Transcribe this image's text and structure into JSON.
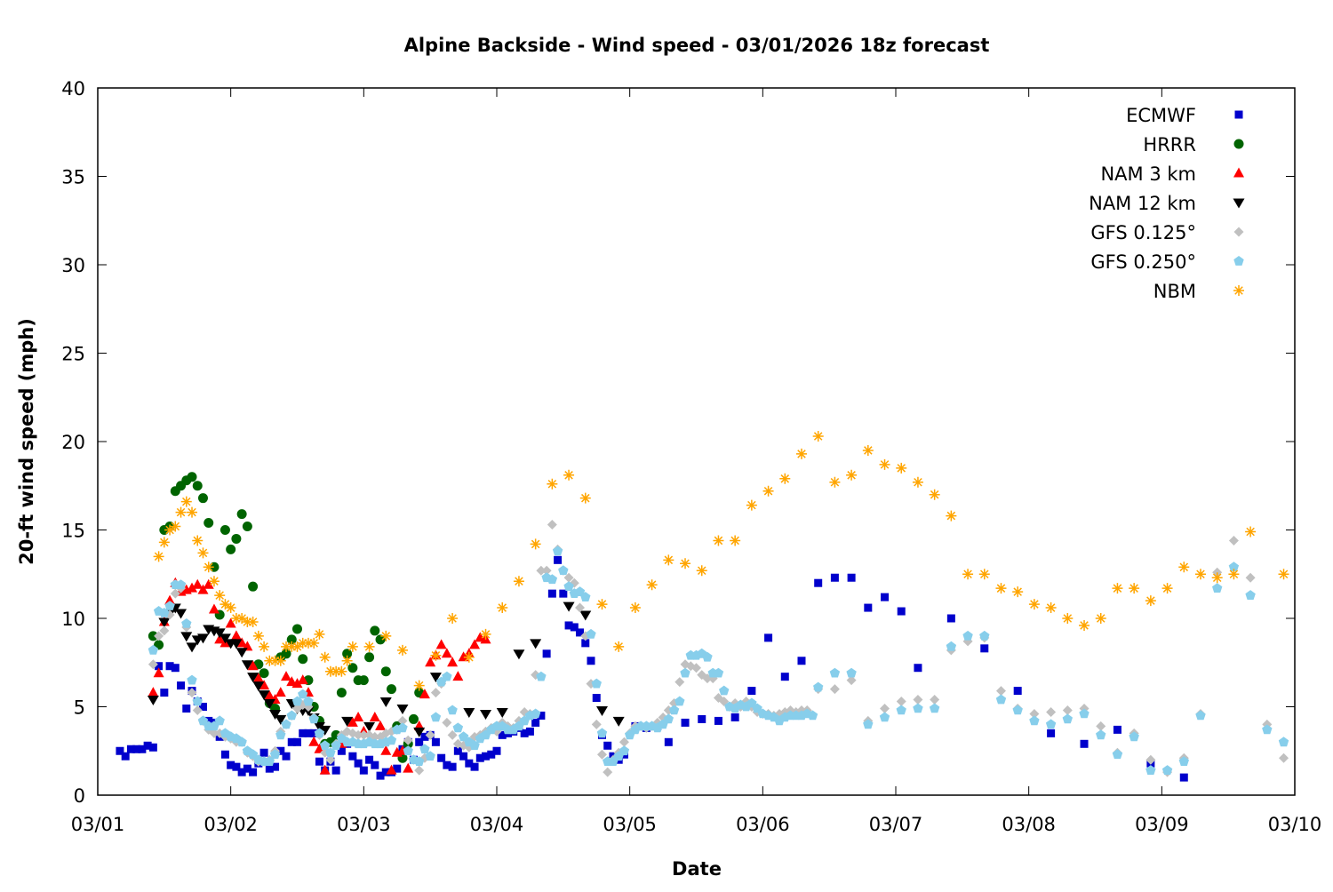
{
  "chart_data": {
    "type": "scatter",
    "title": "Alpine Backside - Wind speed - 03/01/2026 18z forecast",
    "xlabel": "Date",
    "ylabel": "20-ft wind speed (mph)",
    "x_units": "hours since 03/01 00z",
    "xlim": [
      0,
      216
    ],
    "ylim": [
      0,
      40
    ],
    "yticks": [
      0,
      5,
      10,
      15,
      20,
      25,
      30,
      35,
      40
    ],
    "yticklabels": [
      "0",
      "5",
      "10",
      "15",
      "20",
      "25",
      "30",
      "35",
      "40"
    ],
    "xticks": [
      0,
      24,
      48,
      72,
      96,
      120,
      144,
      168,
      192,
      216
    ],
    "xticklabels": [
      "03/01",
      "03/02",
      "03/03",
      "03/04",
      "03/05",
      "03/06",
      "03/07",
      "03/08",
      "03/09",
      "03/10"
    ],
    "legend_position": "top-right",
    "grid": false,
    "series": [
      {
        "name": "ECMWF",
        "marker": "square",
        "color": "#0000cc",
        "segments": [
          {
            "start": 4,
            "step": 1,
            "values": [
              2.5,
              2.2,
              2.6,
              2.6,
              2.6,
              2.8,
              2.7,
              7.3,
              5.8,
              7.3,
              7.2,
              6.2,
              4.9,
              5.9,
              5.3,
              5.0,
              4.2,
              4.1,
              3.3,
              2.3,
              1.7,
              1.6,
              1.3,
              1.5,
              1.3,
              1.8,
              2.4,
              1.5,
              1.6,
              2.5,
              2.2,
              3.0,
              3.0,
              3.5,
              3.5,
              3.5,
              1.9,
              1.4,
              1.9,
              1.4,
              2.5,
              2.9,
              2.2,
              1.8,
              1.4,
              2.0,
              1.7,
              1.1,
              1.3,
              1.3,
              1.5,
              2.6,
              3.0,
              2.0,
              3.0,
              3.3,
              3.4,
              3.0,
              2.1,
              1.7,
              1.6,
              2.5,
              2.2,
              1.8,
              1.6,
              2.1,
              2.2,
              2.3,
              2.5,
              3.4,
              3.5,
              3.6,
              3.8,
              3.5,
              3.6,
              4.1,
              4.5,
              8.0,
              11.4,
              13.3,
              11.4,
              9.6,
              9.5,
              9.2,
              8.6,
              7.6,
              5.5,
              3.4,
              2.8,
              2.2,
              2.0,
              2.3
            ]
          },
          {
            "start": 97,
            "step": 2,
            "values": [
              3.9,
              3.8,
              3.9,
              3.0
            ]
          },
          {
            "start": 106,
            "step": 3,
            "values": [
              4.1,
              4.3,
              4.2,
              4.4,
              5.9,
              8.9,
              6.7,
              7.6,
              12.0,
              12.3,
              12.3,
              10.6,
              11.2,
              10.4,
              7.2
            ]
          },
          {
            "start": 154,
            "step": 6,
            "values": [
              10.0,
              8.3,
              5.9,
              3.5,
              2.9,
              3.7,
              1.8,
              1.0
            ]
          }
        ]
      },
      {
        "name": "HRRR",
        "marker": "circle",
        "color": "#006400",
        "segments": [
          {
            "start": 10,
            "step": 1,
            "values": [
              9.0,
              8.5,
              15.0,
              15.2,
              17.2,
              17.5,
              17.8,
              18.0,
              17.5,
              16.8,
              15.4,
              12.9,
              10.2,
              15.0,
              13.9,
              14.5,
              15.9,
              15.2,
              11.8,
              7.4,
              6.9,
              5.2,
              4.9,
              7.8,
              8.0,
              8.8,
              9.4,
              7.7,
              6.5,
              5.0,
              4.2,
              2.9,
              3.0,
              3.4,
              5.8,
              8.0,
              7.2,
              6.5,
              6.5,
              7.8,
              9.3,
              8.8,
              7.0,
              6.0,
              3.9,
              2.1,
              2.9,
              4.3,
              5.8
            ]
          }
        ]
      },
      {
        "name": "NAM 3 km",
        "marker": "triangle-up",
        "color": "#ff0000",
        "points": [
          [
            10,
            5.8
          ],
          [
            11,
            6.9
          ],
          [
            12,
            9.8
          ],
          [
            13,
            11.0
          ],
          [
            14,
            12.0
          ],
          [
            15,
            11.5
          ],
          [
            16,
            11.6
          ],
          [
            17,
            11.7
          ],
          [
            18,
            11.9
          ],
          [
            19,
            11.6
          ],
          [
            20,
            11.9
          ],
          [
            21,
            10.5
          ],
          [
            22,
            8.8
          ],
          [
            23,
            8.6
          ],
          [
            24,
            9.7
          ],
          [
            25,
            9.0
          ],
          [
            26,
            8.6
          ],
          [
            27,
            8.4
          ],
          [
            28,
            7.3
          ],
          [
            29,
            6.6
          ],
          [
            30,
            6.2
          ],
          [
            31,
            5.6
          ],
          [
            32,
            5.4
          ],
          [
            33,
            5.8
          ],
          [
            34,
            6.7
          ],
          [
            35,
            6.4
          ],
          [
            36,
            6.3
          ],
          [
            37,
            6.5
          ],
          [
            38,
            5.8
          ],
          [
            39,
            3.0
          ],
          [
            40,
            2.6
          ],
          [
            41,
            1.4
          ],
          [
            44,
            2.9
          ],
          [
            46,
            4.1
          ],
          [
            47,
            4.4
          ],
          [
            48,
            3.6
          ],
          [
            50,
            4.4
          ],
          [
            51,
            3.9
          ],
          [
            52,
            2.5
          ],
          [
            53,
            1.4
          ],
          [
            54,
            2.4
          ],
          [
            55,
            2.5
          ],
          [
            56,
            1.5
          ],
          [
            58,
            3.9
          ],
          [
            59,
            5.7
          ],
          [
            60,
            7.5
          ],
          [
            61,
            7.9
          ],
          [
            62,
            8.5
          ],
          [
            63,
            8.0
          ],
          [
            64,
            7.5
          ],
          [
            65,
            6.7
          ],
          [
            66,
            7.8
          ],
          [
            67,
            8.0
          ],
          [
            68,
            8.5
          ],
          [
            69,
            8.9
          ],
          [
            70,
            8.8
          ]
        ]
      },
      {
        "name": "NAM 12 km",
        "marker": "triangle-down",
        "color": "#000000",
        "points": [
          [
            10,
            5.4
          ],
          [
            12,
            9.8
          ],
          [
            13,
            10.3
          ],
          [
            14,
            10.6
          ],
          [
            15,
            10.3
          ],
          [
            16,
            9.0
          ],
          [
            17,
            8.4
          ],
          [
            18,
            8.8
          ],
          [
            19,
            8.9
          ],
          [
            20,
            9.4
          ],
          [
            21,
            9.3
          ],
          [
            22,
            9.2
          ],
          [
            23,
            8.9
          ],
          [
            24,
            8.6
          ],
          [
            25,
            8.6
          ],
          [
            26,
            8.1
          ],
          [
            27,
            7.4
          ],
          [
            28,
            6.7
          ],
          [
            29,
            6.2
          ],
          [
            30,
            5.7
          ],
          [
            31,
            5.2
          ],
          [
            32,
            4.6
          ],
          [
            33,
            4.3
          ],
          [
            35,
            5.2
          ],
          [
            36,
            4.9
          ],
          [
            37,
            4.8
          ],
          [
            38,
            4.8
          ],
          [
            39,
            4.4
          ],
          [
            40,
            3.9
          ],
          [
            41,
            3.7
          ],
          [
            45,
            4.2
          ],
          [
            49,
            3.9
          ],
          [
            52,
            5.3
          ],
          [
            55,
            4.9
          ],
          [
            58,
            3.6
          ],
          [
            61,
            6.7
          ],
          [
            67,
            4.7
          ],
          [
            70,
            4.6
          ],
          [
            73,
            4.7
          ],
          [
            76,
            8.0
          ],
          [
            79,
            8.6
          ],
          [
            85,
            10.7
          ],
          [
            88,
            10.2
          ],
          [
            91,
            4.8
          ],
          [
            94,
            4.2
          ]
        ]
      },
      {
        "name": "GFS 0.125°",
        "marker": "diamond",
        "color": "#c0c0c0",
        "segments": [
          {
            "start": 10,
            "step": 1,
            "values": [
              7.4,
              9.0,
              9.3,
              10.2,
              11.4,
              11.7,
              9.5,
              5.8,
              4.8,
              4.2,
              3.7,
              3.5,
              3.5,
              3.3,
              3.2,
              3.0,
              3.0,
              2.4,
              2.2,
              1.9,
              1.9,
              2.0,
              2.5,
              3.6,
              4.0,
              4.5,
              4.9,
              5.1,
              5.0,
              4.4,
              3.4,
              2.4,
              2.0,
              2.9,
              3.4,
              3.6,
              3.5,
              3.4,
              3.4,
              3.4,
              3.3,
              3.3,
              3.5,
              3.6,
              3.7,
              4.2,
              3.1,
              2.0,
              1.4,
              2.1,
              3.4,
              5.8,
              6.3,
              4.1,
              3.4,
              2.9,
              2.8,
              2.7,
              3.3,
              3.4,
              3.6,
              3.8,
              3.6,
              4.1,
              3.9,
              3.8,
              4.2,
              4.7,
              4.6,
              6.8,
              12.7,
              12.7,
              15.3,
              13.9,
              12.7,
              12.3,
              12.0,
              10.6,
              9.0,
              6.3,
              4.0,
              2.3,
              1.3,
              2.0,
              2.4,
              3.0,
              3.5,
              3.9,
              3.9,
              3.8,
              3.9,
              4.1,
              4.4,
              4.8,
              5.2,
              6.4,
              7.4,
              7.3,
              7.2,
              6.8,
              6.6,
              6.6,
              5.5,
              5.3,
              5.0,
              5.2,
              5.0,
              5.3,
              5.0,
              4.7,
              4.6,
              4.6,
              4.5,
              4.6,
              4.7,
              4.8,
              4.7,
              4.8,
              4.8
            ]
          },
          {
            "start": 130,
            "step": 3,
            "values": [
              6.0,
              6.0,
              6.5,
              4.2,
              4.9,
              5.3,
              5.4,
              5.4,
              8.2,
              8.7,
              8.9,
              5.9,
              4.9,
              4.6,
              4.7,
              4.8,
              4.9,
              3.9,
              2.4,
              3.5,
              2.0,
              1.3,
              2.1,
              4.6,
              12.6,
              14.4,
              12.3,
              4.0,
              2.1
            ]
          }
        ]
      },
      {
        "name": "GFS 0.250°",
        "marker": "pentagon",
        "color": "#87ceeb",
        "segments": [
          {
            "start": 10,
            "step": 1,
            "values": [
              8.2,
              10.4,
              10.3,
              10.7,
              11.9,
              11.9,
              9.7,
              6.5,
              5.3,
              4.2,
              3.9,
              3.9,
              4.2,
              3.5,
              3.3,
              3.2,
              3.0,
              2.5,
              2.3,
              2.0,
              1.9,
              1.9,
              2.3,
              3.4,
              4.0,
              4.5,
              5.3,
              5.7,
              5.3,
              4.3,
              3.5,
              2.8,
              2.4,
              2.8,
              3.2,
              3.0,
              3.0,
              2.9,
              2.9,
              3.0,
              2.9,
              2.9,
              3.0,
              3.1,
              3.7,
              3.8,
              2.5,
              2.0,
              1.9,
              2.6,
              2.2,
              4.4,
              6.4,
              6.7,
              4.8,
              3.8,
              3.3,
              3.0,
              2.8,
              3.2,
              3.4,
              3.7,
              3.9,
              3.9,
              3.7,
              3.7,
              3.9,
              4.2,
              4.5,
              4.6,
              6.7,
              12.3,
              12.2,
              13.8,
              12.7,
              11.8,
              11.4,
              11.5,
              11.2,
              9.1,
              6.3,
              3.5,
              1.9,
              1.9,
              2.2,
              2.5,
              3.4,
              3.7,
              3.9,
              3.9,
              3.9,
              3.8,
              4.0,
              4.3,
              4.8,
              5.3,
              6.9,
              7.9,
              7.9,
              8.0,
              7.8,
              6.9,
              6.9,
              5.9,
              5.0,
              4.9,
              5.1,
              5.0,
              5.2,
              4.9,
              4.6,
              4.5,
              4.4,
              4.2,
              4.4,
              4.5,
              4.5,
              4.5,
              4.6,
              4.5
            ]
          },
          {
            "start": 130,
            "step": 3,
            "values": [
              6.1,
              6.9,
              6.9,
              4.0,
              4.4,
              4.8,
              4.9,
              4.9,
              8.4,
              9.0,
              9.0,
              5.4,
              4.8,
              4.2,
              4.0,
              4.3,
              4.6,
              3.4,
              2.3,
              3.3,
              1.4,
              1.4,
              1.9,
              4.5,
              11.7,
              12.9,
              11.3,
              3.7,
              3.0
            ]
          }
        ]
      },
      {
        "name": "NBM",
        "marker": "asterisk",
        "color": "#ffa500",
        "segments": [
          {
            "start": 11,
            "step": 1,
            "values": [
              13.5,
              14.3,
              15.0,
              15.2,
              16.0,
              16.6,
              16.0,
              14.4,
              13.7,
              12.9,
              12.1,
              11.3,
              10.8,
              10.6,
              10.0,
              10.0,
              9.8,
              9.8,
              9.0,
              8.4,
              7.6,
              7.6,
              7.6,
              8.4,
              8.4,
              8.4,
              8.6,
              8.6,
              8.6,
              9.1,
              7.8,
              7.0,
              7.0,
              7.0,
              7.6,
              8.4
            ]
          },
          {
            "start": 49,
            "step": 3,
            "values": [
              8.4,
              9.0,
              8.2,
              6.2,
              7.9,
              10.0,
              7.8,
              9.1,
              10.6,
              12.1,
              14.2,
              17.6,
              18.1,
              16.8,
              10.8,
              8.4,
              10.6,
              11.9,
              13.3,
              13.1,
              12.7,
              14.4,
              14.4,
              16.4,
              17.2,
              17.9,
              19.3,
              20.3,
              17.7,
              18.1,
              19.5,
              18.7,
              18.5,
              17.7,
              17.0,
              15.8,
              12.5,
              12.5,
              11.7,
              11.5,
              10.8,
              10.6,
              10.0,
              9.6,
              10.0,
              11.7,
              11.7,
              11.0,
              11.7,
              12.9,
              12.5,
              12.3,
              12.5,
              14.9
            ]
          }
        ],
        "points": [
          [
            214,
            12.5
          ]
        ]
      }
    ]
  }
}
